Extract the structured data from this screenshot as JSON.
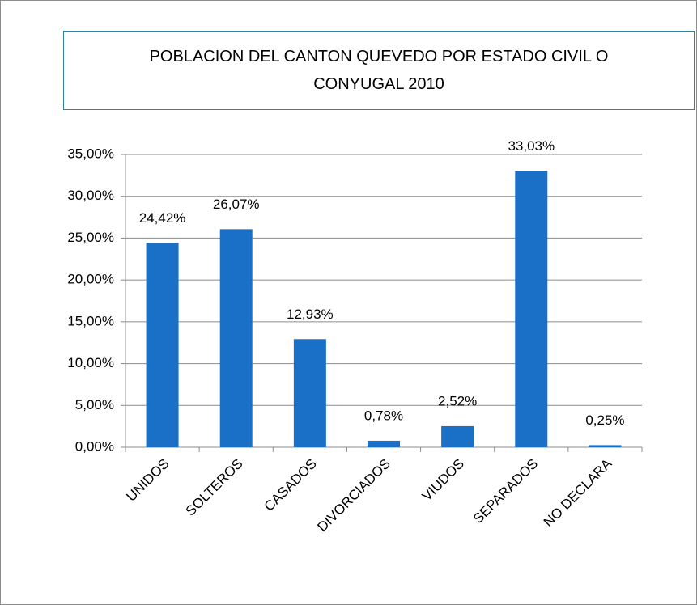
{
  "chart_data": {
    "type": "bar",
    "title": "POBLACION DEL CANTON QUEVEDO POR ESTADO CIVIL O CONYUGAL 2010",
    "categories": [
      "UNIDOS",
      "SOLTEROS",
      "CASADOS",
      "DIVORCIADOS",
      "VIUDOS",
      "SEPARADOS",
      "NO DECLARA"
    ],
    "values": [
      24.42,
      26.07,
      12.93,
      0.78,
      2.52,
      33.03,
      0.25
    ],
    "value_labels": [
      "24,42%",
      "26,07%",
      "12,93%",
      "0,78%",
      "2,52%",
      "33,03%",
      "0,25%"
    ],
    "color": "#1a6fc6",
    "ylim": [
      0,
      35
    ],
    "yticks": [
      {
        "value": 0,
        "label": "0,00%"
      },
      {
        "value": 5,
        "label": "5,00%"
      },
      {
        "value": 10,
        "label": "10,00%"
      },
      {
        "value": 15,
        "label": "15,00%"
      },
      {
        "value": 20,
        "label": "20,00%"
      },
      {
        "value": 25,
        "label": "25,00%"
      },
      {
        "value": 30,
        "label": "30,00%"
      },
      {
        "value": 35,
        "label": "35,00%"
      }
    ],
    "grid": true
  }
}
